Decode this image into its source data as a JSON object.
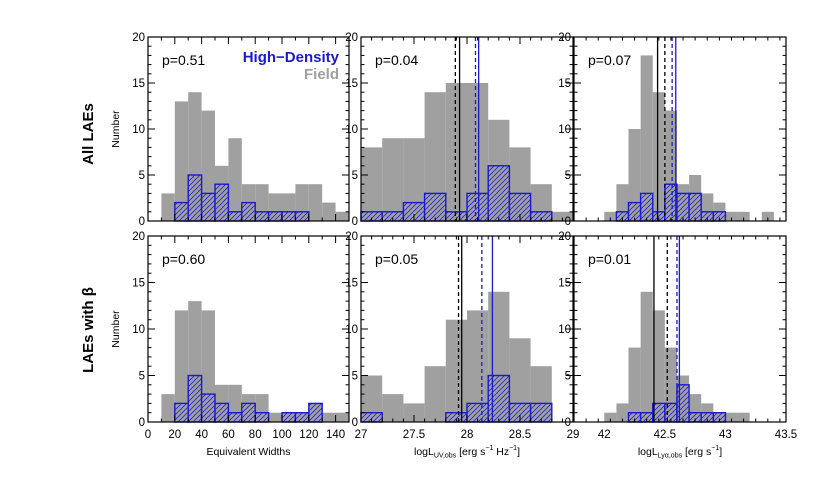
{
  "colors": {
    "field": "#a0a0a0",
    "highdensity": "#1a1acc",
    "axis": "#000000"
  },
  "legend": {
    "high_density": "High−Density",
    "field": "Field"
  },
  "rows": [
    {
      "label": "All LAEs"
    },
    {
      "label": "LAEs with β"
    }
  ],
  "ylabel": "Number",
  "columns": [
    {
      "xlabel_parts": [
        {
          "t": "Equivalent Widths"
        }
      ]
    },
    {
      "xlabel_parts": [
        {
          "t": "logL"
        },
        {
          "t": "UV,obs",
          "sub": true
        },
        {
          "t": " [erg s"
        },
        {
          "t": "−1",
          "sup": true
        },
        {
          "t": " Hz"
        },
        {
          "t": "−1",
          "sup": true
        },
        {
          "t": "]"
        }
      ]
    },
    {
      "xlabel_parts": [
        {
          "t": "logL"
        },
        {
          "t": "Lyα,obs",
          "sub": true
        },
        {
          "t": " [erg s"
        },
        {
          "t": "−1",
          "sup": true
        },
        {
          "t": "]"
        }
      ]
    }
  ],
  "chart_data": [
    {
      "type": "histogram",
      "row": 0,
      "col": 0,
      "annotation": "p=0.51",
      "xlim": [
        0,
        150
      ],
      "ylim": [
        0,
        20
      ],
      "xticks": [
        0,
        20,
        40,
        60,
        80,
        100,
        120,
        140
      ],
      "yticks": [
        0,
        5,
        10,
        15,
        20
      ],
      "show_xticklabels": false,
      "series": [
        {
          "name": "Field",
          "style": "filled",
          "bins": [
            [
              10,
              20,
              3
            ],
            [
              20,
              30,
              13
            ],
            [
              30,
              40,
              14
            ],
            [
              40,
              50,
              12
            ],
            [
              50,
              60,
              6
            ],
            [
              60,
              70,
              9
            ],
            [
              70,
              80,
              4
            ],
            [
              80,
              90,
              4
            ],
            [
              90,
              100,
              3
            ],
            [
              100,
              110,
              3
            ],
            [
              110,
              120,
              4
            ],
            [
              120,
              130,
              4
            ],
            [
              130,
              140,
              2
            ],
            [
              140,
              150,
              1
            ]
          ]
        },
        {
          "name": "High−Density",
          "style": "hatched",
          "bins": [
            [
              20,
              30,
              2
            ],
            [
              30,
              40,
              5
            ],
            [
              40,
              50,
              3
            ],
            [
              50,
              60,
              4
            ],
            [
              60,
              70,
              1
            ],
            [
              70,
              80,
              2
            ],
            [
              80,
              90,
              1
            ],
            [
              90,
              100,
              1
            ],
            [
              100,
              110,
              1
            ],
            [
              110,
              120,
              1
            ]
          ]
        }
      ],
      "vlines": []
    },
    {
      "type": "histogram",
      "row": 0,
      "col": 1,
      "annotation": "p=0.04",
      "xlim": [
        27.0,
        29.0
      ],
      "ylim": [
        0,
        20
      ],
      "xticks": [
        27.0,
        27.5,
        28.0,
        28.5,
        29.0
      ],
      "yticks": [
        0,
        5,
        10,
        15,
        20
      ],
      "show_xticklabels": false,
      "series": [
        {
          "name": "Field",
          "style": "filled",
          "bins": [
            [
              27.0,
              27.2,
              8
            ],
            [
              27.2,
              27.4,
              9
            ],
            [
              27.4,
              27.6,
              9
            ],
            [
              27.6,
              27.8,
              14
            ],
            [
              27.8,
              28.0,
              15
            ],
            [
              28.0,
              28.2,
              15
            ],
            [
              28.2,
              28.4,
              11
            ],
            [
              28.4,
              28.6,
              8
            ],
            [
              28.6,
              28.8,
              4
            ],
            [
              28.8,
              29.0,
              1
            ]
          ]
        },
        {
          "name": "High−Density",
          "style": "hatched",
          "bins": [
            [
              27.0,
              27.2,
              1
            ],
            [
              27.2,
              27.4,
              1
            ],
            [
              27.4,
              27.6,
              2
            ],
            [
              27.6,
              27.8,
              3
            ],
            [
              27.8,
              28.0,
              1
            ],
            [
              28.0,
              28.2,
              3
            ],
            [
              28.2,
              28.4,
              6
            ],
            [
              28.4,
              28.6,
              3
            ],
            [
              28.6,
              28.8,
              1
            ]
          ]
        }
      ],
      "vlines": [
        {
          "x": 27.89,
          "color": "black",
          "dash": true
        },
        {
          "x": 27.93,
          "color": "black",
          "dash": false
        },
        {
          "x": 28.08,
          "color": "blue",
          "dash": true
        },
        {
          "x": 28.11,
          "color": "blue",
          "dash": false
        }
      ]
    },
    {
      "type": "histogram",
      "row": 0,
      "col": 2,
      "annotation": "p=0.07",
      "xlim": [
        41.75,
        43.5
      ],
      "ylim": [
        0,
        20
      ],
      "xticks": [
        42.0,
        42.5,
        43.0,
        43.5
      ],
      "yticks": [
        0,
        5,
        10,
        15,
        20
      ],
      "show_xticklabels": false,
      "series": [
        {
          "name": "Field",
          "style": "filled",
          "bins": [
            [
              42.0,
              42.1,
              1
            ],
            [
              42.1,
              42.2,
              4
            ],
            [
              42.2,
              42.3,
              10
            ],
            [
              42.3,
              42.4,
              18
            ],
            [
              42.4,
              42.5,
              14
            ],
            [
              42.5,
              42.6,
              12
            ],
            [
              42.6,
              42.7,
              4
            ],
            [
              42.7,
              42.8,
              5
            ],
            [
              42.8,
              42.9,
              3
            ],
            [
              42.9,
              43.0,
              2
            ],
            [
              43.0,
              43.1,
              1
            ],
            [
              43.1,
              43.2,
              1
            ],
            [
              43.3,
              43.4,
              1
            ]
          ]
        },
        {
          "name": "High−Density",
          "style": "hatched",
          "bins": [
            [
              42.1,
              42.2,
              1
            ],
            [
              42.2,
              42.3,
              2
            ],
            [
              42.3,
              42.4,
              3
            ],
            [
              42.4,
              42.5,
              1
            ],
            [
              42.5,
              42.6,
              4
            ],
            [
              42.6,
              42.7,
              3
            ],
            [
              42.7,
              42.8,
              3
            ],
            [
              42.8,
              42.9,
              1
            ],
            [
              42.9,
              43.0,
              1
            ]
          ]
        }
      ],
      "vlines": [
        {
          "x": 42.44,
          "color": "black",
          "dash": false
        },
        {
          "x": 42.5,
          "color": "black",
          "dash": true
        },
        {
          "x": 42.56,
          "color": "blue",
          "dash": true
        },
        {
          "x": 42.59,
          "color": "blue",
          "dash": false
        }
      ]
    },
    {
      "type": "histogram",
      "row": 1,
      "col": 0,
      "annotation": "p=0.60",
      "xlim": [
        0,
        150
      ],
      "ylim": [
        0,
        20
      ],
      "xticks": [
        0,
        20,
        40,
        60,
        80,
        100,
        120,
        140
      ],
      "yticks": [
        0,
        5,
        10,
        15,
        20
      ],
      "show_xticklabels": true,
      "series": [
        {
          "name": "Field",
          "style": "filled",
          "bins": [
            [
              10,
              20,
              3
            ],
            [
              20,
              30,
              12
            ],
            [
              30,
              40,
              13
            ],
            [
              40,
              50,
              12
            ],
            [
              50,
              60,
              4
            ],
            [
              60,
              70,
              4
            ],
            [
              70,
              80,
              3
            ],
            [
              80,
              90,
              3
            ],
            [
              90,
              100,
              1
            ],
            [
              100,
              110,
              1
            ],
            [
              110,
              120,
              1
            ],
            [
              120,
              130,
              2
            ],
            [
              130,
              140,
              1
            ],
            [
              140,
              150,
              1
            ]
          ]
        },
        {
          "name": "High−Density",
          "style": "hatched",
          "bins": [
            [
              20,
              30,
              2
            ],
            [
              30,
              40,
              5
            ],
            [
              40,
              50,
              3
            ],
            [
              50,
              60,
              2
            ],
            [
              60,
              70,
              1
            ],
            [
              70,
              80,
              2
            ],
            [
              80,
              90,
              1
            ],
            [
              100,
              110,
              1
            ],
            [
              110,
              120,
              1
            ],
            [
              120,
              130,
              2
            ]
          ]
        }
      ],
      "vlines": []
    },
    {
      "type": "histogram",
      "row": 1,
      "col": 1,
      "annotation": "p=0.05",
      "xlim": [
        27.0,
        29.0
      ],
      "ylim": [
        0,
        20
      ],
      "xticks": [
        27.0,
        27.5,
        28.0,
        28.5,
        29.0
      ],
      "yticks": [
        0,
        5,
        10,
        15,
        20
      ],
      "show_xticklabels": true,
      "series": [
        {
          "name": "Field",
          "style": "filled",
          "bins": [
            [
              27.0,
              27.2,
              5
            ],
            [
              27.2,
              27.4,
              3
            ],
            [
              27.4,
              27.6,
              2
            ],
            [
              27.6,
              27.8,
              6
            ],
            [
              27.8,
              28.0,
              11
            ],
            [
              28.0,
              28.2,
              12
            ],
            [
              28.2,
              28.4,
              14
            ],
            [
              28.4,
              28.6,
              9
            ],
            [
              28.6,
              28.8,
              6
            ]
          ]
        },
        {
          "name": "High−Density",
          "style": "hatched",
          "bins": [
            [
              27.0,
              27.2,
              1
            ],
            [
              27.8,
              28.0,
              1
            ],
            [
              28.0,
              28.2,
              2
            ],
            [
              28.2,
              28.4,
              5
            ],
            [
              28.4,
              28.6,
              2
            ],
            [
              28.6,
              28.8,
              2
            ]
          ]
        }
      ],
      "vlines": [
        {
          "x": 27.92,
          "color": "black",
          "dash": true
        },
        {
          "x": 27.95,
          "color": "black",
          "dash": false
        },
        {
          "x": 28.14,
          "color": "blue",
          "dash": true
        },
        {
          "x": 28.24,
          "color": "blue",
          "dash": false
        }
      ]
    },
    {
      "type": "histogram",
      "row": 1,
      "col": 2,
      "annotation": "p=0.01",
      "xlim": [
        41.75,
        43.5
      ],
      "ylim": [
        0,
        20
      ],
      "xticks": [
        42.0,
        42.5,
        43.0,
        43.5
      ],
      "yticks": [
        0,
        5,
        10,
        15,
        20
      ],
      "show_xticklabels": true,
      "series": [
        {
          "name": "Field",
          "style": "filled",
          "bins": [
            [
              42.0,
              42.1,
              1
            ],
            [
              42.1,
              42.2,
              2
            ],
            [
              42.2,
              42.3,
              8
            ],
            [
              42.3,
              42.4,
              14
            ],
            [
              42.4,
              42.5,
              12
            ],
            [
              42.5,
              42.6,
              8
            ],
            [
              42.6,
              42.7,
              5
            ],
            [
              42.7,
              42.8,
              3
            ],
            [
              42.8,
              42.9,
              2
            ],
            [
              42.9,
              43.0,
              1
            ],
            [
              43.0,
              43.1,
              1
            ],
            [
              43.1,
              43.2,
              1
            ]
          ]
        },
        {
          "name": "High−Density",
          "style": "hatched",
          "bins": [
            [
              42.2,
              42.3,
              1
            ],
            [
              42.3,
              42.4,
              1
            ],
            [
              42.4,
              42.5,
              2
            ],
            [
              42.5,
              42.6,
              2
            ],
            [
              42.6,
              42.7,
              4
            ],
            [
              42.7,
              42.8,
              1
            ],
            [
              42.8,
              42.9,
              1
            ],
            [
              42.9,
              43.0,
              1
            ]
          ]
        }
      ],
      "vlines": [
        {
          "x": 42.41,
          "color": "black",
          "dash": false
        },
        {
          "x": 42.52,
          "color": "black",
          "dash": true
        },
        {
          "x": 42.6,
          "color": "blue",
          "dash": true
        },
        {
          "x": 42.62,
          "color": "blue",
          "dash": false
        }
      ]
    }
  ]
}
